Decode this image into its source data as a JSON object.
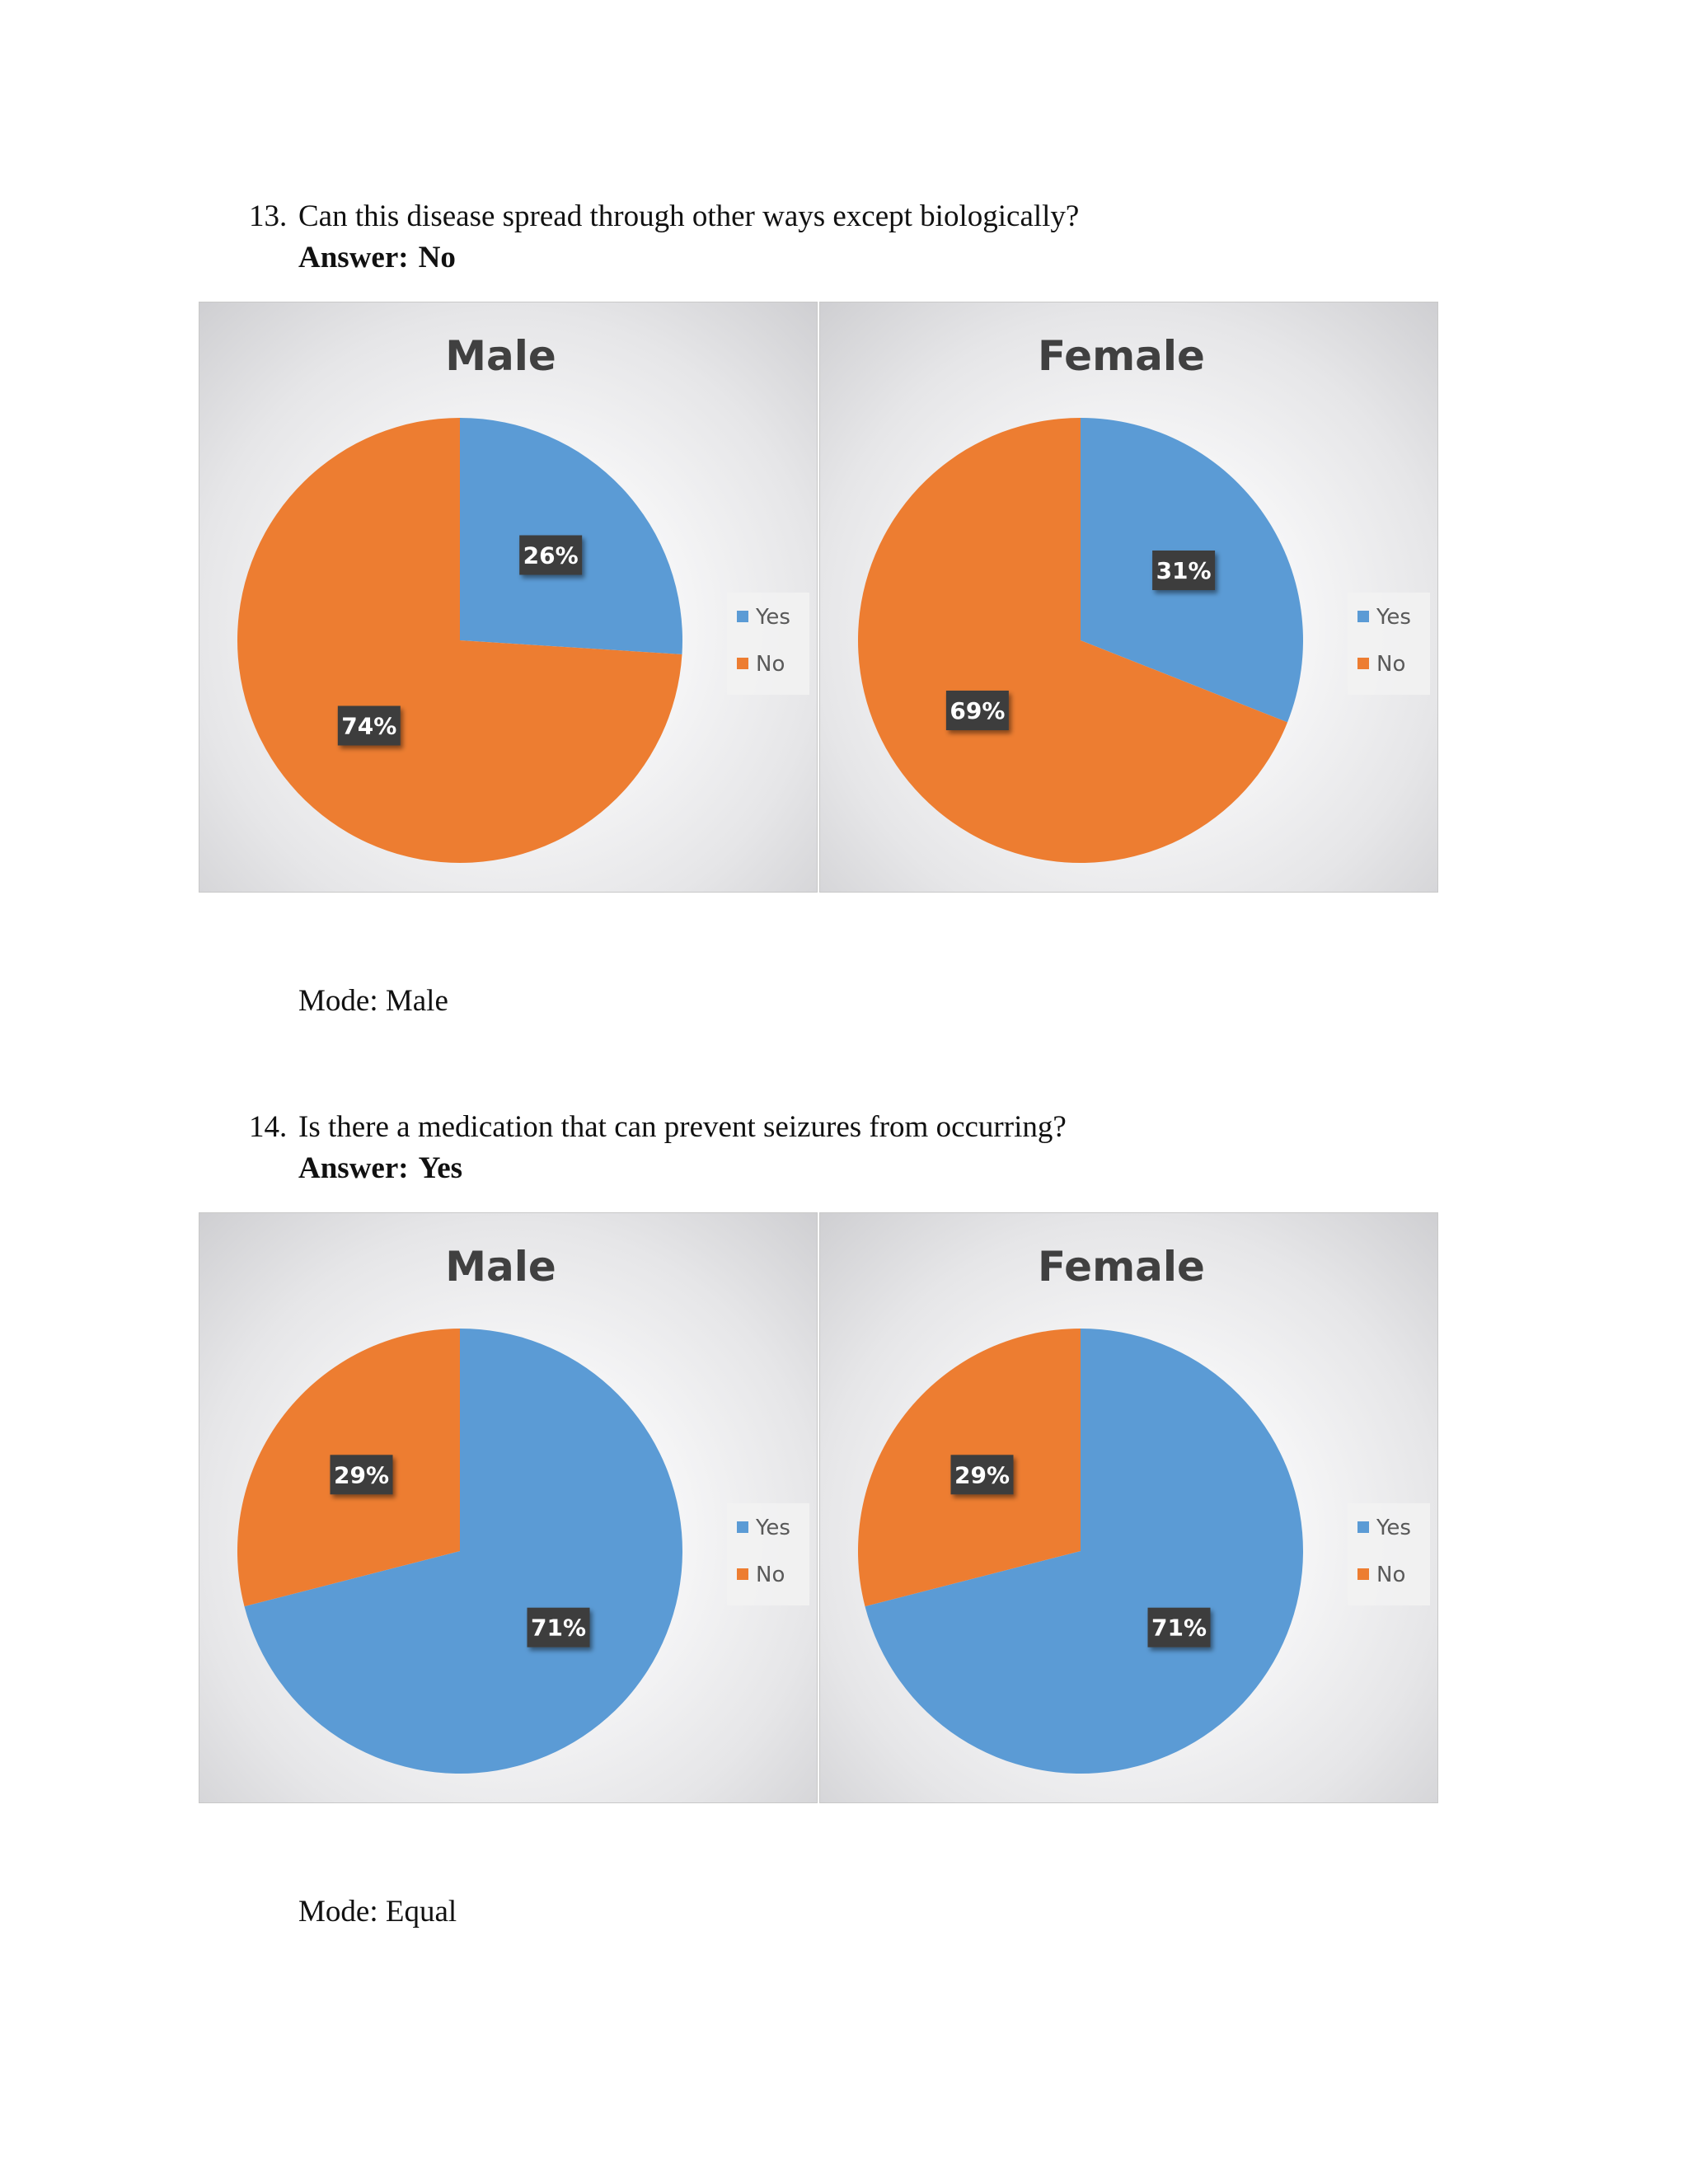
{
  "sections": [
    {
      "number": "13.",
      "question": "Can this disease spread through  other ways except biologically?",
      "answer_label": "Answer:",
      "answer_value": "No",
      "mode_text": "Mode: Male"
    },
    {
      "number": "14.",
      "question": "Is there a medication  that can prevent seizures  from occurring?",
      "answer_label": "Answer:",
      "answer_value": "Yes",
      "mode_text": "Mode: Equal"
    }
  ],
  "colors": {
    "yes": "#5b9bd5",
    "no": "#ed7d31",
    "data_label_bg": "#3d3d3d",
    "title": "#404040"
  },
  "chart_data": [
    {
      "type": "pie",
      "title": "Male",
      "labels": [
        "Yes",
        "No"
      ],
      "values": [
        26,
        74
      ],
      "data_labels": [
        "26%",
        "74%"
      ],
      "legend": [
        "Yes",
        "No"
      ],
      "legend_position": "right"
    },
    {
      "type": "pie",
      "title": "Female",
      "labels": [
        "Yes",
        "No"
      ],
      "values": [
        31,
        69
      ],
      "data_labels": [
        "31%",
        "69%"
      ],
      "legend": [
        "Yes",
        "No"
      ],
      "legend_position": "right"
    },
    {
      "type": "pie",
      "title": "Male",
      "labels": [
        "Yes",
        "No"
      ],
      "values": [
        71,
        29
      ],
      "data_labels": [
        "71%",
        "29%"
      ],
      "legend": [
        "Yes",
        "No"
      ],
      "legend_position": "right"
    },
    {
      "type": "pie",
      "title": "Female",
      "labels": [
        "Yes",
        "No"
      ],
      "values": [
        71,
        29
      ],
      "data_labels": [
        "71%",
        "29%"
      ],
      "legend": [
        "Yes",
        "No"
      ],
      "legend_position": "right"
    }
  ]
}
